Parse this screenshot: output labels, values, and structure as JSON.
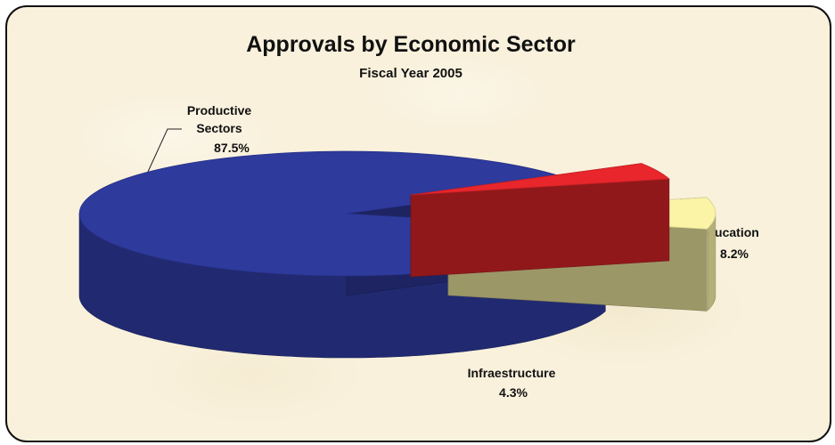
{
  "chart_data": {
    "type": "pie",
    "title": "Approvals by Economic Sector",
    "subtitle": "Fiscal Year 2005",
    "slices": [
      {
        "name": "Productive Sectors",
        "name_lines": [
          "Productive",
          "Sectors"
        ],
        "value": 87.5,
        "label": "87.5%",
        "color": "#2e3a9c"
      },
      {
        "name": "Infraestructure",
        "name_lines": [
          "Infraestructure"
        ],
        "value": 4.3,
        "label": "4.3%",
        "color": "#e8262c"
      },
      {
        "name": "Education",
        "name_lines": [
          "Education"
        ],
        "value": 8.2,
        "label": "8.2%",
        "color": "#fbf3a6"
      }
    ]
  }
}
